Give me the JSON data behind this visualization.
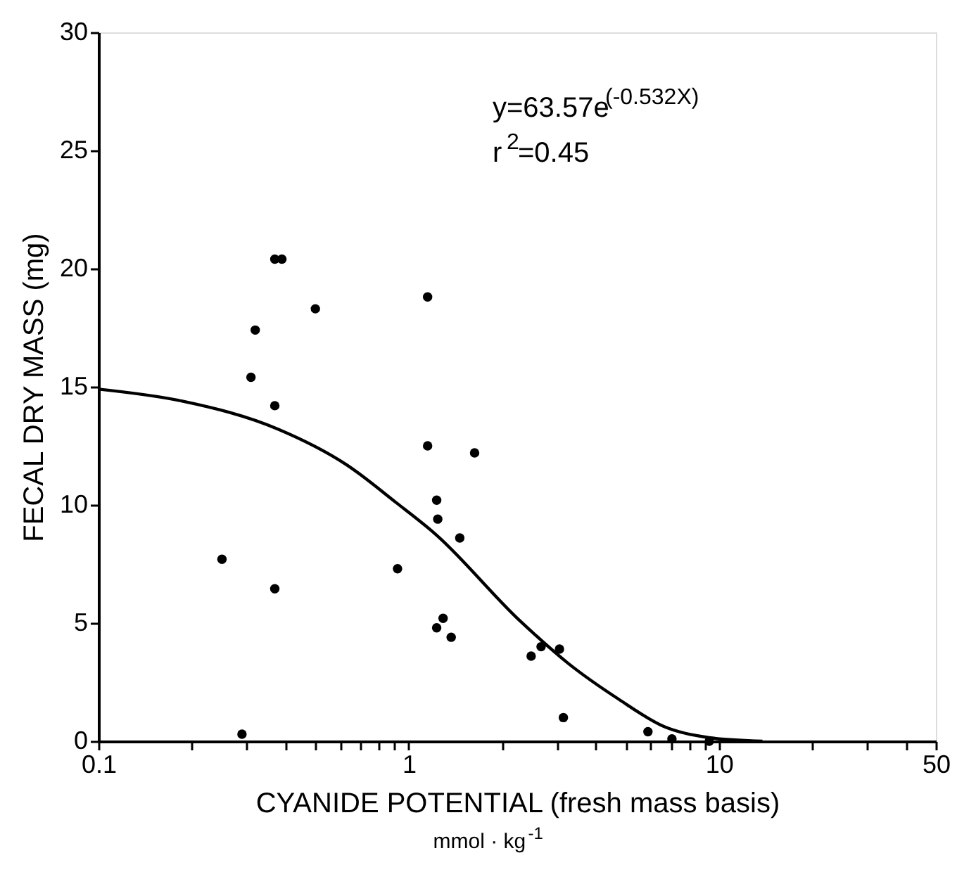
{
  "chart_data": {
    "type": "scatter",
    "xlabel": "CYANIDE POTENTIAL (fresh mass basis)",
    "ylabel": "FECAL DRY MASS (mg)",
    "annotations": [
      "y=63.57e$^{(-0.532X)}$",
      "r$^{2}$=0.45",
      "mmol · kg$^{-1}$"
    ],
    "log": "x",
    "xlim": [
      0.1,
      50
    ],
    "xticks": [
      0.1,
      {
        "value": 0.2,
        "label": null
      },
      {
        "value": 0.3,
        "label": null
      },
      {
        "value": 0.4,
        "label": null
      },
      {
        "value": 0.5,
        "label": null
      },
      {
        "value": 0.6,
        "label": null
      },
      {
        "value": 0.7,
        "label": null
      },
      {
        "value": 0.8,
        "label": null
      },
      {
        "value": 0.9,
        "label": null
      },
      1,
      {
        "value": 2,
        "label": null
      },
      {
        "value": 3,
        "label": null
      },
      {
        "value": 4,
        "label": null
      },
      {
        "value": 5,
        "label": null
      },
      {
        "value": 6,
        "label": null
      },
      {
        "value": 7,
        "label": null
      },
      {
        "value": 8,
        "label": null
      },
      {
        "value": 9,
        "label": null
      },
      10,
      {
        "value": 20,
        "label": null
      },
      {
        "value": 30,
        "label": null
      },
      {
        "value": 40,
        "label": null
      },
      50
    ],
    "ylim": [
      0,
      30
    ],
    "yticks": [
      0,
      5,
      10,
      15,
      20,
      25,
      30
    ],
    "grid": false,
    "series": [
      {
        "type": "scatter",
        "marker": "circle",
        "color": "#000000",
        "x": [
          0.25,
          0.29,
          0.31,
          0.32,
          0.37,
          0.37,
          0.37,
          0.39,
          0.5,
          0.92,
          1.15,
          1.15,
          1.23,
          1.24,
          1.46,
          1.63,
          1.29,
          1.23,
          1.37,
          2.48,
          2.67,
          3.06,
          3.15,
          5.9,
          7.05,
          9.3
        ],
        "values": [
          7.7,
          0.3,
          15.4,
          17.4,
          14.2,
          6.45,
          20.4,
          20.4,
          18.3,
          7.3,
          18.8,
          12.5,
          10.2,
          9.4,
          8.6,
          12.2,
          5.2,
          4.8,
          4.4,
          3.6,
          4.0,
          3.9,
          1.0,
          0.4,
          0.1,
          0
        ]
      },
      {
        "type": "line",
        "color": "#000000",
        "x": [
          0.1,
          0.185,
          0.38,
          0.63,
          0.91,
          1.21,
          2.28,
          3.26,
          4.72,
          6.7,
          9.3,
          13.8
        ],
        "values": [
          14.9,
          14.4,
          13.2,
          11.7,
          10.1,
          8.8,
          5.1,
          3.3,
          1.8,
          0.6,
          0.15,
          0.0
        ]
      }
    ]
  }
}
